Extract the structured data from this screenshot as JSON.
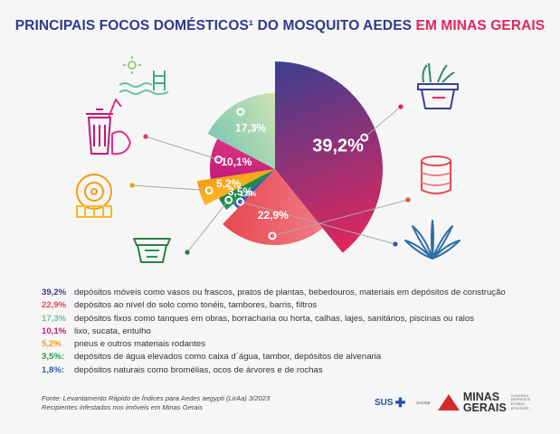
{
  "title": {
    "part1": "PRINCIPAIS FOCOS DOMÉSTICOS¹ DO MOSQUITO AEDES",
    "part2": "EM MINAS GERAIS"
  },
  "chart_data": {
    "type": "pie",
    "slices": [
      {
        "value": 39.2,
        "label": "39,2%",
        "color": "#3b3f8f",
        "color2": "#e2265e",
        "desc": "depósitos móveis como vasos ou frascos, pratos de plantas, bebedouros, materiais em depósitos de construção"
      },
      {
        "value": 22.9,
        "label": "22,9%",
        "color": "#f07a86",
        "color2": "#e8474f",
        "desc": "depósitos ao nível do solo como tonéis, tambores, barris, filtros"
      },
      {
        "value": 1.8,
        "label": "1,8%",
        "color": "#3559b0",
        "color2": "#3559b0",
        "desc": "depósitos naturais como bromélias, ocos de árvores e de rochas"
      },
      {
        "value": 3.5,
        "label": "3,5%",
        "color": "#1e9a55",
        "color2": "#1f7f44",
        "desc": "depósitos de água elevados como caixa d´água, tambor, depósitos de alvenaria"
      },
      {
        "value": 5.2,
        "label": "5,2%",
        "color": "#fbb829",
        "color2": "#f59b10",
        "desc": "pneus e outros materiais rodantes"
      },
      {
        "value": 10.1,
        "label": "10,1%",
        "color": "#c11a7a",
        "color2": "#d9347f",
        "desc": "lixo, sucata, entulho"
      },
      {
        "value": 17.3,
        "label": "17,3%",
        "color": "#7fc9b2",
        "color2": "#cfe2b3",
        "desc": "depósitos fixos como tanques em obras, borracharia ou horta, calhas, lajes, sanitários, piscinas ou ralos"
      }
    ]
  },
  "legend": [
    {
      "pct": "39,2%",
      "color": "#3b3f8f",
      "text": "depósitos móveis como vasos ou frascos, pratos de plantas, bebedouros, materiais em depósitos de construção"
    },
    {
      "pct": "22,9%",
      "color": "#e8474f",
      "text": "depósitos ao nível do solo como tonéis, tambores, barris, filtros"
    },
    {
      "pct": "17,3%",
      "color": "#6fc2ab",
      "text": "depósitos fixos como tanques em obras, borracharia ou horta, calhas, lajes, sanitários, piscinas ou ralos"
    },
    {
      "pct": "10,1%",
      "color": "#c11a7a",
      "text": "lixo, sucata, entulho"
    },
    {
      "pct": "5,2%",
      "color": "#f59b10",
      "text": "pneus e outros materiais rodantes"
    },
    {
      "pct": "3,5%:",
      "color": "#1e9a55",
      "text": "depósitos de água elevados como caixa d´água, tambor, depósitos de alvenaria"
    },
    {
      "pct": "1,8%:",
      "color": "#3559b0",
      "text": "depósitos naturais como bromélias, ocos de árvores e de rochas"
    }
  ],
  "source": {
    "line1": "Fonte: Levantamento Rápido de Índices para Aedes aegypti (LirAa) 3/2023",
    "line2": "Recipientes infestados nos imóveis em Minas Gerais"
  },
  "logos": {
    "sus": "SUS",
    "saude": "SAÚDE",
    "minas": "MINAS",
    "gerais": "GERAIS",
    "sub1": "GOVERNO",
    "sub2": "DIFERENTE.",
    "sub3": "ESTADO",
    "sub4": "EFICIENTE."
  },
  "icons": [
    "potted-plant-icon",
    "barrel-icon",
    "bromeliad-icon",
    "water-tank-icon",
    "tire-icon",
    "trash-icon",
    "pool-icon"
  ]
}
